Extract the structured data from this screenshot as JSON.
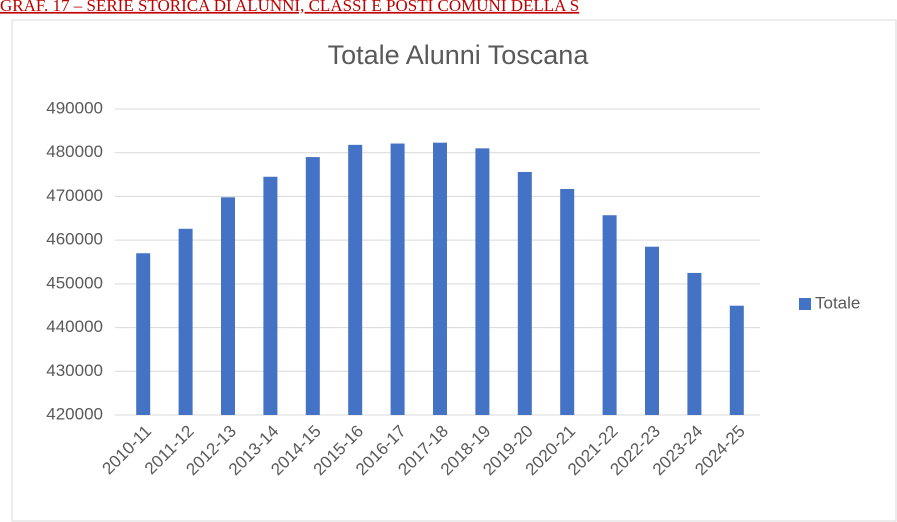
{
  "header": {
    "caption": "GRAF. 17 – SERIE STORICA DI ALUNNI, CLASSI E POSTI COMUNI DELLA S"
  },
  "chart_data": {
    "type": "bar",
    "title": "Totale Alunni Toscana",
    "categories": [
      "2010-11",
      "2011-12",
      "2012-13",
      "2013-14",
      "2014-15",
      "2015-16",
      "2016-17",
      "2017-18",
      "2018-19",
      "2019-20",
      "2020-21",
      "2021-22",
      "2022-23",
      "2023-24",
      "2024-25"
    ],
    "series": [
      {
        "name": "Totale",
        "color": "#4472c4",
        "values": [
          457000,
          462600,
          469800,
          474500,
          479000,
          481800,
          482100,
          482300,
          481000,
          475600,
          471700,
          465700,
          458500,
          452500,
          445000
        ]
      }
    ],
    "ylim": [
      420000,
      490000
    ],
    "yticks": [
      420000,
      430000,
      440000,
      450000,
      460000,
      470000,
      480000,
      490000
    ],
    "grid": true,
    "legend": "right"
  }
}
